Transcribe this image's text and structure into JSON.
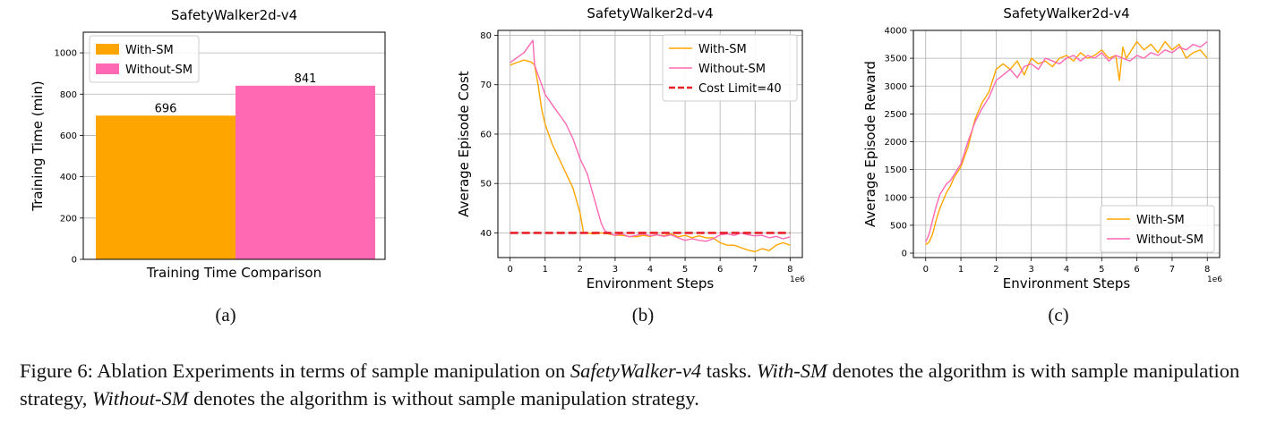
{
  "charts": [
    {
      "type": "bar",
      "title": "SafetyWalker2d-v4",
      "xlabel": "Training Time Comparison",
      "ylabel": "Training Time (min)",
      "ylim": [
        0,
        1100
      ],
      "yticks": [
        0,
        200,
        400,
        600,
        800,
        1000
      ],
      "grid": true,
      "legend_position": "top-left",
      "series": [
        {
          "name": "With-SM",
          "value": 696,
          "label": "696",
          "color": "#FFA500"
        },
        {
          "name": "Without-SM",
          "value": 841,
          "label": "841",
          "color": "#FF69B4"
        }
      ]
    },
    {
      "type": "line",
      "title": "SafetyWalker2d-v4",
      "xlabel": "Environment Steps",
      "ylabel": "Average Episode Cost",
      "x_multiplier": "1e6",
      "xlim": [
        -0.35,
        8.35
      ],
      "ylim": [
        35,
        81
      ],
      "xticks": [
        0,
        1,
        2,
        3,
        4,
        5,
        6,
        7,
        8
      ],
      "yticks": [
        40,
        50,
        60,
        70,
        80
      ],
      "grid": true,
      "legend_position": "top-right",
      "series": [
        {
          "name": "With-SM",
          "color": "#FFA500",
          "x": [
            0,
            0.2,
            0.4,
            0.6,
            0.7,
            0.8,
            0.9,
            1.0,
            1.2,
            1.4,
            1.6,
            1.8,
            2.0,
            2.1,
            2.2,
            2.4,
            2.6,
            2.8,
            3.0,
            3.2,
            3.4,
            3.6,
            3.8,
            4.0,
            4.2,
            4.4,
            4.6,
            4.8,
            5.0,
            5.2,
            5.4,
            5.6,
            5.8,
            6.0,
            6.2,
            6.4,
            6.6,
            6.8,
            7.0,
            7.2,
            7.4,
            7.6,
            7.8,
            8.0
          ],
          "y": [
            74,
            74.5,
            75,
            74.6,
            74,
            70,
            65,
            62,
            58,
            55,
            52,
            49,
            44,
            40,
            40,
            39.8,
            40,
            39.8,
            39.5,
            39.5,
            39.3,
            39.2,
            39.5,
            39.3,
            39.6,
            39.4,
            39.8,
            39.2,
            39.5,
            39.0,
            39.4,
            39.0,
            39.0,
            38.0,
            37.5,
            37.5,
            37.0,
            36.5,
            36.2,
            36.8,
            36.4,
            37.5,
            38.0,
            37.5
          ]
        },
        {
          "name": "Without-SM",
          "color": "#FF69B4",
          "x": [
            0,
            0.2,
            0.4,
            0.6,
            0.65,
            0.7,
            0.8,
            0.9,
            1.0,
            1.2,
            1.4,
            1.6,
            1.8,
            2.0,
            2.2,
            2.4,
            2.6,
            2.7,
            2.8,
            3.0,
            3.2,
            3.4,
            3.6,
            3.8,
            4.0,
            4.2,
            4.4,
            4.6,
            4.8,
            5.0,
            5.2,
            5.4,
            5.6,
            5.8,
            6.0,
            6.2,
            6.4,
            6.6,
            6.8,
            7.0,
            7.2,
            7.4,
            7.6,
            7.8,
            8.0
          ],
          "y": [
            74.5,
            75.5,
            76.5,
            78.5,
            79,
            74,
            72,
            70,
            68,
            66,
            64,
            62,
            59,
            55,
            52,
            47,
            42,
            40.5,
            40,
            39.5,
            39.8,
            39.2,
            39.5,
            39.8,
            39.4,
            39.6,
            39.3,
            39.6,
            39.0,
            38.5,
            38.8,
            38.5,
            38.3,
            38.8,
            39.6,
            39.8,
            39.5,
            40.0,
            39.6,
            39.4,
            39.5,
            39.0,
            39.3,
            38.8,
            39.2
          ]
        },
        {
          "name": "Cost Limit=40",
          "color": "#E8202A",
          "dashed": true,
          "x": [
            0,
            8
          ],
          "y": [
            40,
            40
          ]
        }
      ]
    },
    {
      "type": "line",
      "title": "SafetyWalker2d-v4",
      "xlabel": "Environment Steps",
      "ylabel": "Average Episode Reward",
      "x_multiplier": "1e6",
      "xlim": [
        -0.35,
        8.35
      ],
      "ylim": [
        -80,
        4000
      ],
      "xticks": [
        0,
        1,
        2,
        3,
        4,
        5,
        6,
        7,
        8
      ],
      "yticks": [
        0,
        500,
        1000,
        1500,
        2000,
        2500,
        3000,
        3500,
        4000
      ],
      "grid": true,
      "legend_position": "bottom-right",
      "series": [
        {
          "name": "With-SM",
          "color": "#FFA500",
          "x": [
            0,
            0.1,
            0.2,
            0.3,
            0.4,
            0.5,
            0.6,
            0.7,
            0.8,
            0.9,
            1.0,
            1.2,
            1.4,
            1.6,
            1.8,
            2.0,
            2.2,
            2.4,
            2.6,
            2.8,
            3.0,
            3.2,
            3.4,
            3.6,
            3.8,
            4.0,
            4.2,
            4.4,
            4.6,
            4.8,
            5.0,
            5.2,
            5.4,
            5.5,
            5.6,
            5.7,
            5.8,
            6.0,
            6.2,
            6.4,
            6.6,
            6.8,
            7.0,
            7.2,
            7.4,
            7.6,
            7.8,
            8.0
          ],
          "y": [
            150,
            200,
            350,
            600,
            800,
            950,
            1100,
            1200,
            1350,
            1450,
            1550,
            1900,
            2400,
            2700,
            2900,
            3300,
            3400,
            3300,
            3450,
            3200,
            3500,
            3400,
            3450,
            3350,
            3500,
            3550,
            3450,
            3600,
            3500,
            3550,
            3650,
            3500,
            3550,
            3100,
            3700,
            3500,
            3600,
            3800,
            3650,
            3750,
            3600,
            3800,
            3650,
            3750,
            3500,
            3600,
            3650,
            3500
          ]
        },
        {
          "name": "Without-SM",
          "color": "#FF69B4",
          "x": [
            0,
            0.1,
            0.2,
            0.3,
            0.4,
            0.5,
            0.6,
            0.7,
            0.8,
            0.9,
            1.0,
            1.2,
            1.4,
            1.6,
            1.8,
            2.0,
            2.2,
            2.4,
            2.6,
            2.8,
            3.0,
            3.2,
            3.4,
            3.6,
            3.8,
            4.0,
            4.2,
            4.4,
            4.6,
            4.8,
            5.0,
            5.2,
            5.4,
            5.6,
            5.8,
            6.0,
            6.2,
            6.4,
            6.6,
            6.8,
            7.0,
            7.2,
            7.4,
            7.6,
            7.8,
            8.0
          ],
          "y": [
            200,
            350,
            600,
            850,
            1050,
            1150,
            1250,
            1300,
            1400,
            1500,
            1600,
            2000,
            2350,
            2600,
            2800,
            3100,
            3200,
            3300,
            3150,
            3350,
            3400,
            3300,
            3500,
            3450,
            3400,
            3500,
            3550,
            3450,
            3550,
            3500,
            3600,
            3450,
            3550,
            3500,
            3450,
            3550,
            3500,
            3600,
            3550,
            3650,
            3600,
            3700,
            3650,
            3750,
            3700,
            3800
          ]
        }
      ]
    }
  ],
  "sublabels": [
    "(a)",
    "(b)",
    "(c)"
  ],
  "caption": {
    "p1": "Figure 6: Ablation Experiments in terms of sample manipulation on ",
    "i1": "SafetyWalker-v4",
    "p2": " tasks. ",
    "i2": "With-SM",
    "p3": " denotes the algorithm is with sample manipulation strategy, ",
    "i3": "Without-SM",
    "p4": " denotes the algorithm is without sample manipulation strategy."
  }
}
